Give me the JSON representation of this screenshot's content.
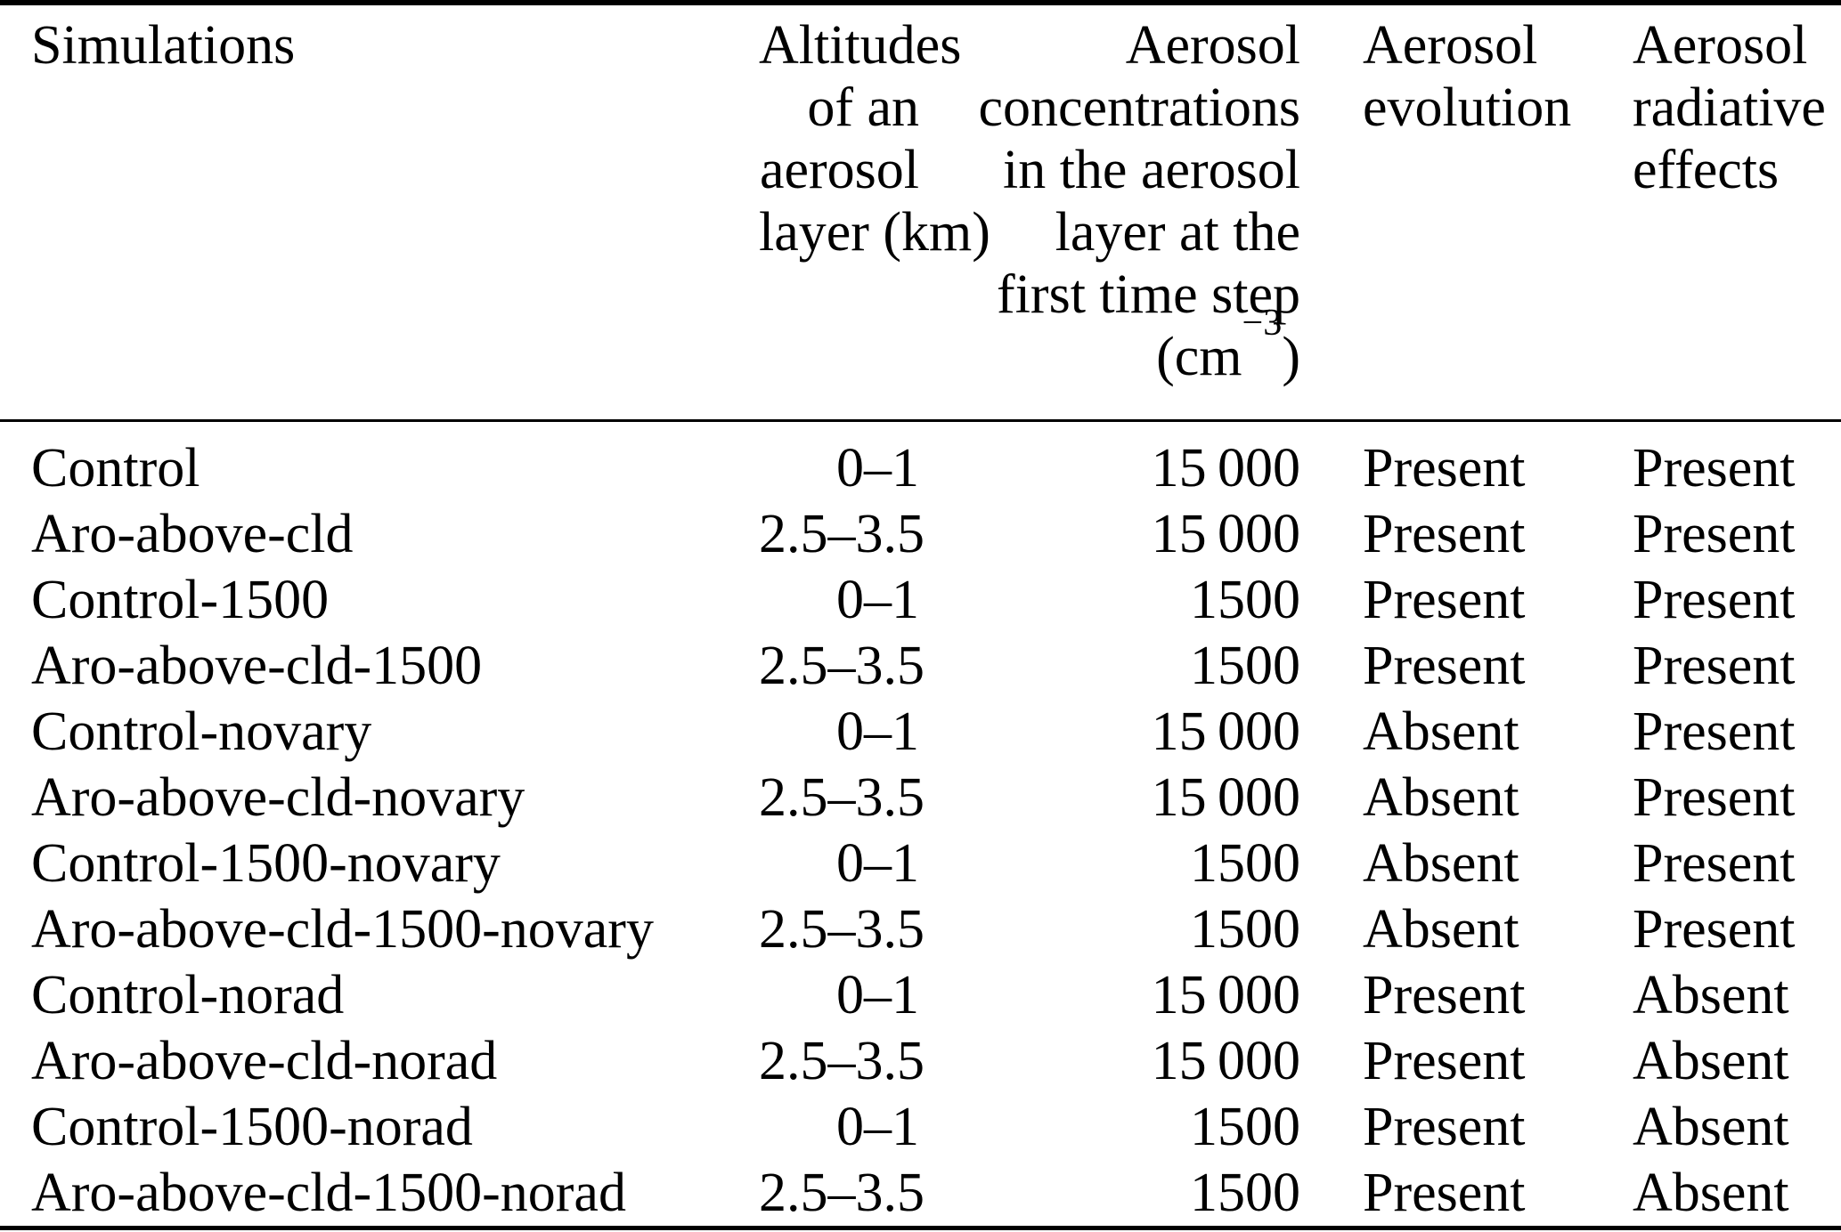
{
  "table": {
    "columns": {
      "simulations": {
        "label_lines": [
          "Simulations"
        ]
      },
      "altitudes": {
        "label_lines": [
          "Altitudes",
          "of an",
          "aerosol",
          "layer (km)"
        ]
      },
      "concentrations": {
        "label_lines": [
          "Aerosol",
          "concentrations",
          "in the aerosol",
          "layer at the",
          "first time step"
        ],
        "unit_prefix": "(cm",
        "unit_sup": "−3",
        "unit_suffix": ")"
      },
      "evolution": {
        "label_lines": [
          "Aerosol",
          "evolution"
        ]
      },
      "radiative": {
        "label_lines": [
          "Aerosol",
          "radiative",
          "effects"
        ]
      }
    },
    "rows": [
      {
        "simulation": "Control",
        "altitude_km": "0–1",
        "concentration": "15 000",
        "evolution": "Present",
        "radiative": "Present"
      },
      {
        "simulation": "Aro-above-cld",
        "altitude_km": "2.5–3.5",
        "concentration": "15 000",
        "evolution": "Present",
        "radiative": "Present"
      },
      {
        "simulation": "Control-1500",
        "altitude_km": "0–1",
        "concentration": "1500",
        "evolution": "Present",
        "radiative": "Present"
      },
      {
        "simulation": "Aro-above-cld-1500",
        "altitude_km": "2.5–3.5",
        "concentration": "1500",
        "evolution": "Present",
        "radiative": "Present"
      },
      {
        "simulation": "Control-novary",
        "altitude_km": "0–1",
        "concentration": "15 000",
        "evolution": "Absent",
        "radiative": "Present"
      },
      {
        "simulation": "Aro-above-cld-novary",
        "altitude_km": "2.5–3.5",
        "concentration": "15 000",
        "evolution": "Absent",
        "radiative": "Present"
      },
      {
        "simulation": "Control-1500-novary",
        "altitude_km": "0–1",
        "concentration": "1500",
        "evolution": "Absent",
        "radiative": "Present"
      },
      {
        "simulation": "Aro-above-cld-1500-novary",
        "altitude_km": "2.5–3.5",
        "concentration": "1500",
        "evolution": "Absent",
        "radiative": "Present"
      },
      {
        "simulation": "Control-norad",
        "altitude_km": "0–1",
        "concentration": "15 000",
        "evolution": "Present",
        "radiative": "Absent"
      },
      {
        "simulation": "Aro-above-cld-norad",
        "altitude_km": "2.5–3.5",
        "concentration": "15 000",
        "evolution": "Present",
        "radiative": "Absent"
      },
      {
        "simulation": "Control-1500-norad",
        "altitude_km": "0–1",
        "concentration": "1500",
        "evolution": "Present",
        "radiative": "Absent"
      },
      {
        "simulation": "Aro-above-cld-1500-norad",
        "altitude_km": "2.5–3.5",
        "concentration": "1500",
        "evolution": "Present",
        "radiative": "Absent"
      }
    ]
  },
  "colors": {
    "text": "#000000",
    "background": "#ffffff",
    "rule": "#000000"
  }
}
